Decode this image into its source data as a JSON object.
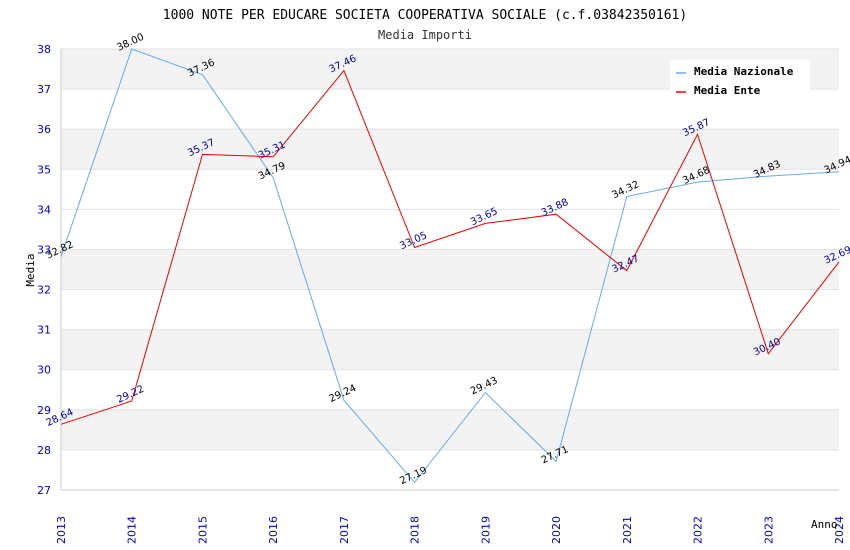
{
  "chart_data": {
    "type": "line",
    "title": "1000 NOTE PER EDUCARE SOCIETA COOPERATIVA SOCIALE (c.f.03842350161)",
    "subtitle": "Media Importi",
    "xlabel": "Anno",
    "ylabel": "Media",
    "ylim": [
      27,
      38
    ],
    "yticks": [
      "27",
      "28",
      "29",
      "30",
      "31",
      "32",
      "33",
      "34",
      "35",
      "36",
      "37",
      "38"
    ],
    "x": [
      "2013",
      "2014",
      "2015",
      "2016",
      "2017",
      "2018",
      "2019",
      "2020",
      "2021",
      "2022",
      "2023",
      "2024"
    ],
    "grid": true,
    "legend_position": "top-right",
    "series": [
      {
        "name": "Media Nazionale",
        "color": "#66aaee",
        "values": [
          32.82,
          38.0,
          37.36,
          34.79,
          29.24,
          27.19,
          29.43,
          27.71,
          34.32,
          34.68,
          34.83,
          34.94
        ],
        "labels": [
          "32.82",
          "38.00",
          "37.36",
          "34.79",
          "29.24",
          "27.19",
          "29.43",
          "27.71",
          "34.32",
          "34.68",
          "34.83",
          "34.94"
        ]
      },
      {
        "name": "Media Ente",
        "color": "#ee0000",
        "values": [
          28.64,
          29.22,
          35.37,
          35.31,
          37.46,
          33.05,
          33.65,
          33.88,
          32.47,
          35.87,
          30.4,
          32.69
        ],
        "labels": [
          "28.64",
          "29.22",
          "35.37",
          "35.31",
          "37.46",
          "33.05",
          "33.65",
          "33.88",
          "32.47",
          "35.87",
          "30.40",
          "32.69"
        ]
      }
    ]
  }
}
